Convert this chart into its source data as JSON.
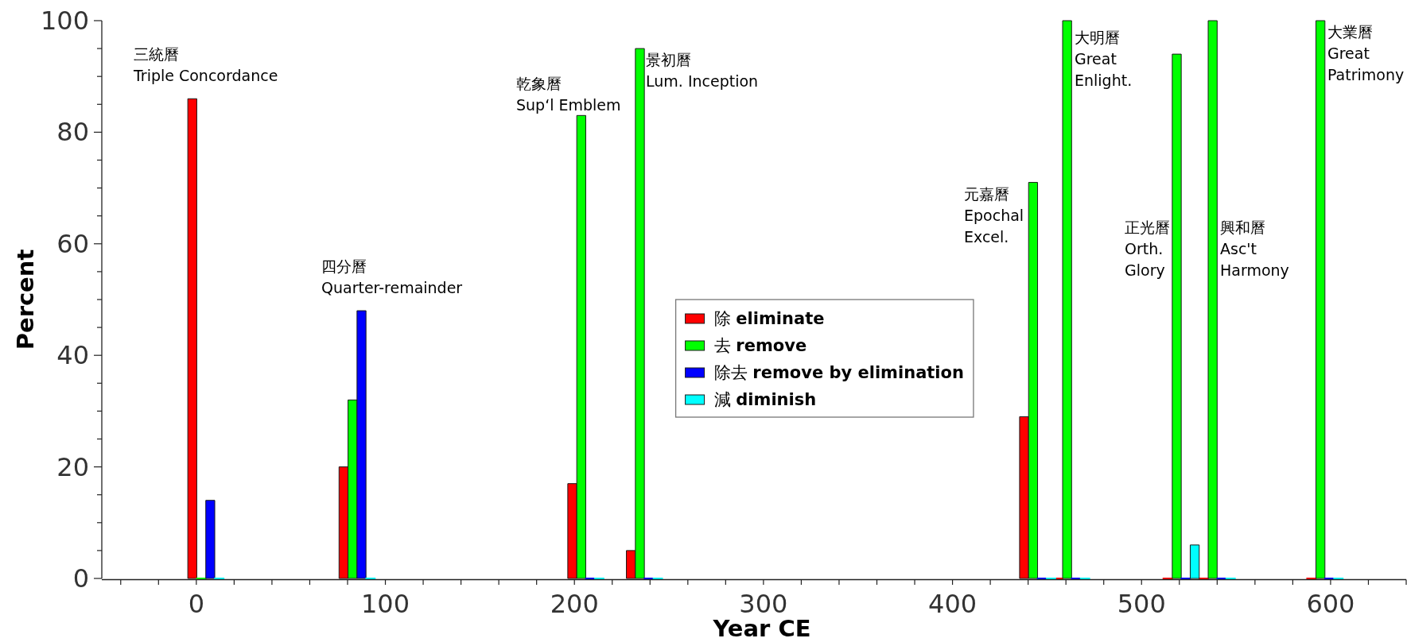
{
  "chart_data": {
    "type": "bar",
    "xlabel": "Year CE",
    "ylabel": "Percent",
    "x": [
      5,
      85,
      206,
      237,
      445,
      463,
      521,
      540,
      597
    ],
    "series": [
      {
        "name": "除 **eliminate**",
        "color": "#ff0000",
        "values": [
          86,
          20,
          17,
          5,
          29,
          0,
          0,
          0,
          0
        ]
      },
      {
        "name": "去 **remove**",
        "color": "#00ff00",
        "values": [
          0,
          32,
          83,
          95,
          71,
          100,
          94,
          100,
          100
        ]
      },
      {
        "name": "除去 **remove by elimination**",
        "color": "#0000ff",
        "values": [
          14,
          48,
          0,
          0,
          0,
          0,
          0,
          0,
          0
        ]
      },
      {
        "name": "減 **diminish**",
        "color": "#00ffff",
        "values": [
          0,
          0,
          0,
          0,
          0,
          0,
          6,
          0,
          0
        ]
      }
    ],
    "xlim": [
      -50,
      640
    ],
    "xticks": [
      {
        "value": -40,
        "label": null
      },
      {
        "value": -20,
        "label": null
      },
      0,
      {
        "value": 20,
        "label": null
      },
      {
        "value": 40,
        "label": null
      },
      {
        "value": 60,
        "label": null
      },
      {
        "value": 80,
        "label": null
      },
      100,
      {
        "value": 120,
        "label": null
      },
      {
        "value": 140,
        "label": null
      },
      {
        "value": 160,
        "label": null
      },
      {
        "value": 180,
        "label": null
      },
      200,
      {
        "value": 220,
        "label": null
      },
      {
        "value": 240,
        "label": null
      },
      {
        "value": 260,
        "label": null
      },
      {
        "value": 280,
        "label": null
      },
      300,
      {
        "value": 320,
        "label": null
      },
      {
        "value": 340,
        "label": null
      },
      {
        "value": 360,
        "label": null
      },
      {
        "value": 380,
        "label": null
      },
      400,
      {
        "value": 420,
        "label": null
      },
      {
        "value": 440,
        "label": null
      },
      {
        "value": 460,
        "label": null
      },
      {
        "value": 480,
        "label": null
      },
      500,
      {
        "value": 520,
        "label": null
      },
      {
        "value": 540,
        "label": null
      },
      {
        "value": 560,
        "label": null
      },
      {
        "value": 580,
        "label": null
      },
      600,
      {
        "value": 620,
        "label": null
      },
      {
        "value": 640,
        "label": null
      }
    ],
    "ylim": [
      0,
      100
    ],
    "yticks": [
      0,
      {
        "value": 5,
        "label": null
      },
      {
        "value": 10,
        "label": null
      },
      {
        "value": 15,
        "label": null
      },
      20,
      {
        "value": 25,
        "label": null
      },
      {
        "value": 30,
        "label": null
      },
      {
        "value": 35,
        "label": null
      },
      40,
      {
        "value": 45,
        "label": null
      },
      {
        "value": 50,
        "label": null
      },
      {
        "value": 55,
        "label": null
      },
      60,
      {
        "value": 65,
        "label": null
      },
      {
        "value": 70,
        "label": null
      },
      {
        "value": 75,
        "label": null
      },
      80,
      {
        "value": 85,
        "label": null
      },
      {
        "value": 90,
        "label": null
      },
      {
        "value": 95,
        "label": null
      },
      100
    ],
    "legend": "center",
    "annotations": [
      "三統曆\nTriple Concordance",
      "四分曆\nQuarter-remainder",
      "乾象曆\nSup‘l Emblem",
      "景初曆\nLum. Inception",
      "元嘉曆\nEpochal\nExcel.",
      "大明曆\nGreat\nEnlight.",
      "正光曆\nOrth.\nGlory",
      "興和曆\nAsc't\nHarmony",
      "大業曆\nGreat\nPatrimony"
    ]
  }
}
